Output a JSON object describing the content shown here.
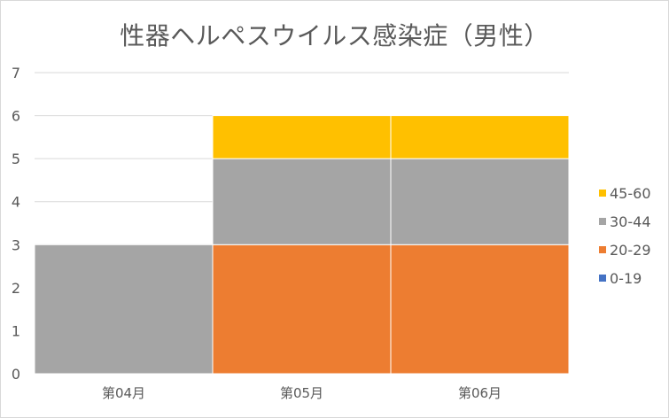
{
  "chart_data": {
    "type": "bar",
    "stacked": true,
    "title": "性器ヘルペスウイルス感染症（男性）",
    "categories": [
      "第04月",
      "第05月",
      "第06月"
    ],
    "series": [
      {
        "name": "0-19",
        "color": "#4472C4",
        "values": [
          0,
          0,
          0
        ]
      },
      {
        "name": "20-29",
        "color": "#ED7D31",
        "values": [
          0,
          3,
          3
        ]
      },
      {
        "name": "30-44",
        "color": "#A5A5A5",
        "values": [
          3,
          2,
          2
        ]
      },
      {
        "name": "45-60",
        "color": "#FFC000",
        "values": [
          0,
          1,
          1
        ]
      }
    ],
    "yticks": [
      "0",
      "1",
      "2",
      "3",
      "4",
      "5",
      "6",
      "7"
    ],
    "ylim": [
      0,
      7
    ],
    "grid": true,
    "legend_position": "right"
  }
}
